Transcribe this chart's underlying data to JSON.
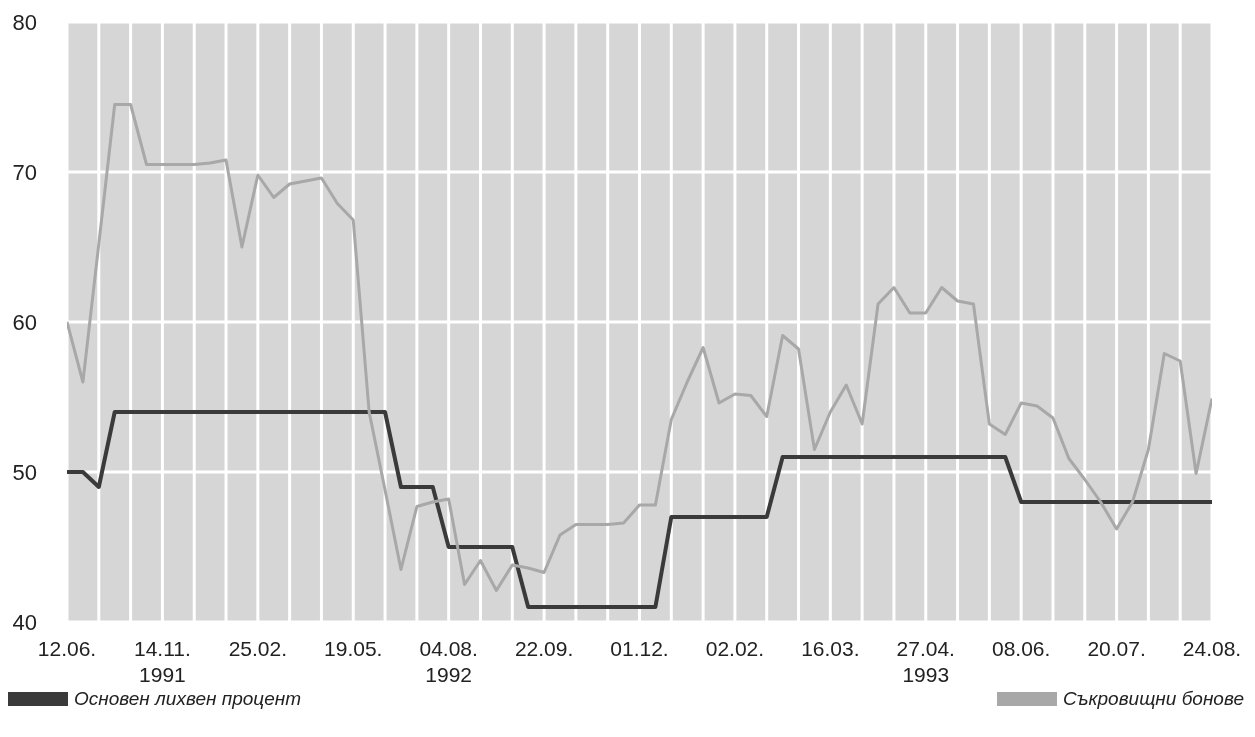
{
  "chart_data": {
    "type": "line",
    "categories": [
      "12.06.",
      null,
      null,
      null,
      null,
      null,
      "14.11.\n1991",
      null,
      null,
      null,
      null,
      null,
      "25.02.",
      null,
      null,
      null,
      null,
      null,
      "19.05.",
      null,
      null,
      null,
      null,
      null,
      "04.08.\n1992",
      null,
      null,
      null,
      null,
      null,
      "22.09.",
      null,
      null,
      null,
      null,
      null,
      "01.12.",
      null,
      null,
      null,
      null,
      null,
      "02.02.",
      null,
      null,
      null,
      null,
      null,
      "16.03.",
      null,
      null,
      null,
      null,
      null,
      "27.04.\n1993",
      null,
      null,
      null,
      null,
      null,
      "08.06.",
      null,
      null,
      null,
      null,
      null,
      "20.07.",
      null,
      null,
      null,
      null,
      null,
      "24.08."
    ],
    "series": [
      {
        "name": "Основен лихвен процент",
        "color": "#3a3a3a",
        "values": [
          50,
          50,
          49,
          54,
          54,
          54,
          54,
          54,
          54,
          54,
          54,
          54,
          54,
          54,
          54,
          54,
          54,
          54,
          54,
          54,
          54,
          49,
          49,
          49,
          45,
          45,
          45,
          45,
          45,
          41,
          41,
          41,
          41,
          41,
          41,
          41,
          41,
          41,
          47,
          47,
          47,
          47,
          47,
          47,
          47,
          51,
          51,
          51,
          51,
          51,
          51,
          51,
          51,
          51,
          51,
          51,
          51,
          51,
          51,
          51,
          48,
          48,
          48,
          48,
          48,
          48,
          48,
          48,
          48,
          48,
          48,
          48,
          48
        ]
      },
      {
        "name": "Съкровищни бонове",
        "color": "#a8a8a8",
        "values": [
          60,
          56,
          65.2,
          74.5,
          74.5,
          70.5,
          70.5,
          70.5,
          70.5,
          70.6,
          70.8,
          65,
          69.8,
          68.3,
          69.2,
          69.4,
          69.6,
          67.9,
          66.8,
          54,
          48.8,
          43.5,
          47.7,
          48,
          48.2,
          42.5,
          44.1,
          42.1,
          43.8,
          43.6,
          43.3,
          45.8,
          46.5,
          46.5,
          46.5,
          46.6,
          47.8,
          47.8,
          53.5,
          56,
          58.3,
          54.6,
          55.2,
          55.1,
          53.7,
          59.1,
          58.2,
          51.5,
          54,
          55.8,
          53.2,
          61.2,
          62.3,
          60.6,
          60.6,
          62.3,
          61.4,
          61.2,
          53.2,
          52.5,
          54.6,
          54.4,
          53.6,
          50.9,
          49.5,
          48,
          46.2,
          48,
          51.5,
          57.9,
          57.4,
          49.9,
          54.9
        ]
      }
    ],
    "ylim": [
      40,
      80
    ],
    "yticks": [
      40,
      50,
      60,
      70,
      80
    ],
    "grid": true,
    "legend": "bottom"
  }
}
